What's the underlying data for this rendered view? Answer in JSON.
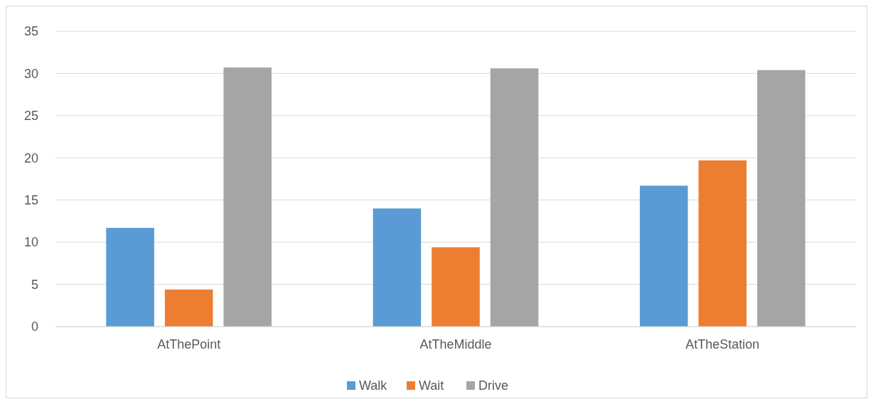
{
  "chart_data": {
    "type": "bar",
    "categories": [
      "AtThePoint",
      "AtTheMiddle",
      "AtTheStation"
    ],
    "series": [
      {
        "name": "Walk",
        "color": "#5b9bd5",
        "values": [
          11.7,
          14.0,
          16.7
        ]
      },
      {
        "name": "Wait",
        "color": "#ed7d31",
        "values": [
          4.4,
          9.4,
          19.7
        ]
      },
      {
        "name": "Drive",
        "color": "#a5a5a5",
        "values": [
          30.7,
          30.6,
          30.4
        ]
      }
    ],
    "ylim": [
      0,
      35
    ],
    "yticks": [
      0,
      5,
      10,
      15,
      20,
      25,
      30,
      35
    ],
    "grid": "y",
    "legend": "bottom"
  }
}
